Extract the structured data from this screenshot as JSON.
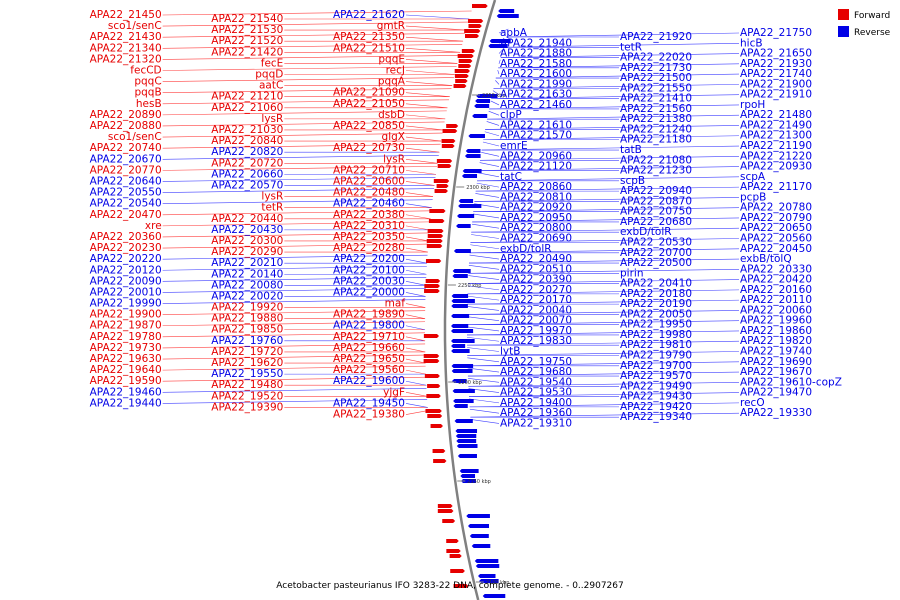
{
  "colors": {
    "forward": "#e60000",
    "reverse": "#0000e6",
    "backbone": "#808080",
    "leader_forward": "#ff4040",
    "leader_reverse": "#4040ff"
  },
  "caption": "Acetobacter pasteurianus IFO 3283-22 DNA, complete genome. - 0..2907267",
  "legend": [
    {
      "label": "Forward",
      "color": "#e60000"
    },
    {
      "label": "Reverse",
      "color": "#0000e6"
    }
  ],
  "ticks": [
    "2100 kbp",
    "2150 kbp",
    "2200 kbp",
    "2250 kbp",
    "2300 kbp",
    "2350 kbp"
  ],
  "left_labels": [
    [
      "APA22_21450",
      "r"
    ],
    [
      "APA22_21540",
      "r"
    ],
    [
      "APA22_21620",
      "b"
    ],
    [
      "sco1/senC",
      "r"
    ],
    [
      "APA22_21530",
      "r"
    ],
    [
      "gmtR",
      "r"
    ],
    [
      "APA22_21430",
      "r"
    ],
    [
      "APA22_21520",
      "r"
    ],
    [
      "APA22_21350",
      "r"
    ],
    [
      "APA22_21340",
      "r"
    ],
    [
      "APA22_21420",
      "r"
    ],
    [
      "APA22_21510",
      "r"
    ],
    [
      "APA22_21320",
      "r"
    ],
    [
      "fecE",
      "r"
    ],
    [
      "pqqE",
      "r"
    ],
    [
      "fecCD",
      "r"
    ],
    [
      "pqqD",
      "r"
    ],
    [
      "recJ",
      "r"
    ],
    [
      "pqqC",
      "r"
    ],
    [
      "aatC",
      "r"
    ],
    [
      "pqqA",
      "r"
    ],
    [
      "pqqB",
      "r"
    ],
    [
      "APA22_21210",
      "r"
    ],
    [
      "APA22_21090",
      "r"
    ],
    [
      "hesB",
      "r"
    ],
    [
      "APA22_21060",
      "r"
    ],
    [
      "APA22_21050",
      "r"
    ],
    [
      "APA22_20890",
      "r"
    ],
    [
      "lysR",
      "r"
    ],
    [
      "dsbD",
      "r"
    ],
    [
      "APA22_20880",
      "r"
    ],
    [
      "APA22_21030",
      "r"
    ],
    [
      "APA22_20850",
      "r"
    ],
    [
      "sco1/senC",
      "r"
    ],
    [
      "APA22_20840",
      "r"
    ],
    [
      "glgX",
      "r"
    ],
    [
      "APA22_20740",
      "r"
    ],
    [
      "APA22_20820",
      "b"
    ],
    [
      "APA22_20730",
      "r"
    ],
    [
      "APA22_20670",
      "b"
    ],
    [
      "APA22_20720",
      "r"
    ],
    [
      "lysR",
      "r"
    ],
    [
      "APA22_20770",
      "r"
    ],
    [
      "APA22_20660",
      "b"
    ],
    [
      "APA22_20710",
      "r"
    ],
    [
      "APA22_20640",
      "b"
    ],
    [
      "APA22_20570",
      "b"
    ],
    [
      "APA22_20600",
      "r"
    ],
    [
      "APA22_20550",
      "b"
    ],
    [
      "lysR",
      "r"
    ],
    [
      "APA22_20480",
      "r"
    ],
    [
      "APA22_20540",
      "b"
    ],
    [
      "tetR",
      "r"
    ],
    [
      "APA22_20460",
      "b"
    ],
    [
      "APA22_20470",
      "r"
    ],
    [
      "APA22_20440",
      "r"
    ],
    [
      "APA22_20380",
      "r"
    ],
    [
      "xre",
      "r"
    ],
    [
      "APA22_20430",
      "b"
    ],
    [
      "APA22_20310",
      "r"
    ],
    [
      "APA22_20360",
      "r"
    ],
    [
      "APA22_20300",
      "r"
    ],
    [
      "APA22_20350",
      "r"
    ],
    [
      "APA22_20230",
      "r"
    ],
    [
      "APA22_20290",
      "r"
    ],
    [
      "APA22_20280",
      "r"
    ],
    [
      "APA22_20220",
      "b"
    ],
    [
      "APA22_20210",
      "b"
    ],
    [
      "APA22_20200",
      "b"
    ],
    [
      "APA22_20120",
      "b"
    ],
    [
      "APA22_20140",
      "b"
    ],
    [
      "APA22_20100",
      "b"
    ],
    [
      "APA22_20090",
      "b"
    ],
    [
      "APA22_20080",
      "b"
    ],
    [
      "APA22_20030",
      "b"
    ],
    [
      "APA22_20010",
      "b"
    ],
    [
      "APA22_20020",
      "b"
    ],
    [
      "APA22_20000",
      "b"
    ],
    [
      "APA22_19990",
      "b"
    ],
    [
      "APA22_19920",
      "r"
    ],
    [
      "maf",
      "r"
    ],
    [
      "APA22_19900",
      "r"
    ],
    [
      "APA22_19880",
      "r"
    ],
    [
      "APA22_19890",
      "r"
    ],
    [
      "APA22_19870",
      "r"
    ],
    [
      "APA22_19850",
      "r"
    ],
    [
      "APA22_19800",
      "b"
    ],
    [
      "APA22_19780",
      "r"
    ],
    [
      "APA22_19760",
      "b"
    ],
    [
      "APA22_19710",
      "r"
    ],
    [
      "APA22_19730",
      "r"
    ],
    [
      "APA22_19720",
      "r"
    ],
    [
      "APA22_19660",
      "r"
    ],
    [
      "APA22_19630",
      "r"
    ],
    [
      "APA22_19620",
      "r"
    ],
    [
      "APA22_19650",
      "r"
    ],
    [
      "APA22_19640",
      "r"
    ],
    [
      "APA22_19550",
      "b"
    ],
    [
      "APA22_19560",
      "r"
    ],
    [
      "APA22_19590",
      "r"
    ],
    [
      "APA22_19480",
      "r"
    ],
    [
      "APA22_19600",
      "b"
    ],
    [
      "APA22_19460",
      "b"
    ],
    [
      "APA22_19520",
      "r"
    ],
    [
      "yjgF",
      "r"
    ],
    [
      "APA22_19440",
      "b"
    ],
    [
      "APA22_19390",
      "r"
    ],
    [
      "APA22_19450",
      "b"
    ],
    [
      "APA22_19380",
      "r"
    ]
  ],
  "right_labels": [
    [
      "apbA",
      "b"
    ],
    [
      "APA22_21920",
      "b"
    ],
    [
      "APA22_21750",
      "b"
    ],
    [
      "APA22_21940",
      "b"
    ],
    [
      "tetR",
      "b"
    ],
    [
      "hicB",
      "b"
    ],
    [
      "APA22_21880",
      "b"
    ],
    [
      "APA22_22020",
      "b"
    ],
    [
      "APA22_21650",
      "b"
    ],
    [
      "APA22_21580",
      "b"
    ],
    [
      "APA22_21730",
      "b"
    ],
    [
      "APA22_21930",
      "b"
    ],
    [
      "APA22_21600",
      "b"
    ],
    [
      "APA22_21500",
      "b"
    ],
    [
      "APA22_21740",
      "b"
    ],
    [
      "APA22_21990",
      "b"
    ],
    [
      "APA22_21550",
      "b"
    ],
    [
      "APA22_21900",
      "b"
    ],
    [
      "APA22_21630",
      "b"
    ],
    [
      "APA22_21410",
      "b"
    ],
    [
      "APA22_21910",
      "b"
    ],
    [
      "APA22_21460",
      "b"
    ],
    [
      "APA22_21560",
      "b"
    ],
    [
      "rpoH",
      "b"
    ],
    [
      "clpP",
      "b"
    ],
    [
      "APA22_21380",
      "b"
    ],
    [
      "APA22_21480",
      "b"
    ],
    [
      "APA22_21610",
      "b"
    ],
    [
      "APA22_21240",
      "b"
    ],
    [
      "APA22_21490",
      "b"
    ],
    [
      "APA22_21570",
      "b"
    ],
    [
      "APA22_21180",
      "b"
    ],
    [
      "APA22_21300",
      "b"
    ],
    [
      "emrE",
      "b"
    ],
    [
      "tatB",
      "b"
    ],
    [
      "APA22_21190",
      "b"
    ],
    [
      "APA22_20960",
      "b"
    ],
    [
      "APA22_21080",
      "b"
    ],
    [
      "APA22_21220",
      "b"
    ],
    [
      "APA22_21120",
      "b"
    ],
    [
      "APA22_21230",
      "b"
    ],
    [
      "APA22_20930",
      "b"
    ],
    [
      "tatC",
      "b"
    ],
    [
      "scpB",
      "b"
    ],
    [
      "scpA",
      "b"
    ],
    [
      "APA22_20860",
      "b"
    ],
    [
      "APA22_20940",
      "b"
    ],
    [
      "APA22_21170",
      "b"
    ],
    [
      "APA22_20810",
      "b"
    ],
    [
      "APA22_20870",
      "b"
    ],
    [
      "pcpB",
      "b"
    ],
    [
      "APA22_20920",
      "b"
    ],
    [
      "APA22_20750",
      "b"
    ],
    [
      "APA22_20780",
      "b"
    ],
    [
      "APA22_20950",
      "b"
    ],
    [
      "APA22_20680",
      "b"
    ],
    [
      "APA22_20790",
      "b"
    ],
    [
      "APA22_20800",
      "b"
    ],
    [
      "exbD/tolR",
      "b"
    ],
    [
      "APA22_20650",
      "b"
    ],
    [
      "APA22_20690",
      "b"
    ],
    [
      "APA22_20530",
      "b"
    ],
    [
      "APA22_20560",
      "b"
    ],
    [
      "exbD/tolR",
      "b"
    ],
    [
      "APA22_20700",
      "b"
    ],
    [
      "APA22_20450",
      "b"
    ],
    [
      "APA22_20490",
      "b"
    ],
    [
      "APA22_20500",
      "b"
    ],
    [
      "exbB/tolQ",
      "b"
    ],
    [
      "APA22_20510",
      "b"
    ],
    [
      "pirin",
      "b"
    ],
    [
      "APA22_20330",
      "b"
    ],
    [
      "APA22_20390",
      "b"
    ],
    [
      "APA22_20410",
      "b"
    ],
    [
      "APA22_20420",
      "b"
    ],
    [
      "APA22_20270",
      "b"
    ],
    [
      "APA22_20180",
      "b"
    ],
    [
      "APA22_20160",
      "b"
    ],
    [
      "APA22_20170",
      "b"
    ],
    [
      "APA22_20190",
      "b"
    ],
    [
      "APA22_20110",
      "b"
    ],
    [
      "APA22_20040",
      "b"
    ],
    [
      "APA22_20050",
      "b"
    ],
    [
      "APA22_20060",
      "b"
    ],
    [
      "APA22_20070",
      "b"
    ],
    [
      "APA22_19950",
      "b"
    ],
    [
      "APA22_19960",
      "b"
    ],
    [
      "APA22_19970",
      "b"
    ],
    [
      "APA22_19980",
      "b"
    ],
    [
      "APA22_19860",
      "b"
    ],
    [
      "APA22_19830",
      "b"
    ],
    [
      "APA22_19810",
      "b"
    ],
    [
      "APA22_19820",
      "b"
    ],
    [
      "lytB",
      "b"
    ],
    [
      "APA22_19790",
      "b"
    ],
    [
      "APA22_19740",
      "b"
    ],
    [
      "APA22_19750",
      "b"
    ],
    [
      "APA22_19700",
      "b"
    ],
    [
      "APA22_19690",
      "b"
    ],
    [
      "APA22_19680",
      "b"
    ],
    [
      "APA22_19570",
      "b"
    ],
    [
      "APA22_19670",
      "b"
    ],
    [
      "APA22_19540",
      "b"
    ],
    [
      "APA22_19490",
      "b"
    ],
    [
      "APA22_19610-copZ",
      "b"
    ],
    [
      "APA22_19530",
      "b"
    ],
    [
      "APA22_19430",
      "b"
    ],
    [
      "APA22_19470",
      "b"
    ],
    [
      "APA22_19400",
      "b"
    ],
    [
      "APA22_19420",
      "b"
    ],
    [
      "recO",
      "b"
    ],
    [
      "APA22_19360",
      "b"
    ],
    [
      "APA22_19340",
      "b"
    ],
    [
      "APA22_19330",
      "b"
    ],
    [
      "APA22_19310",
      "b"
    ]
  ]
}
